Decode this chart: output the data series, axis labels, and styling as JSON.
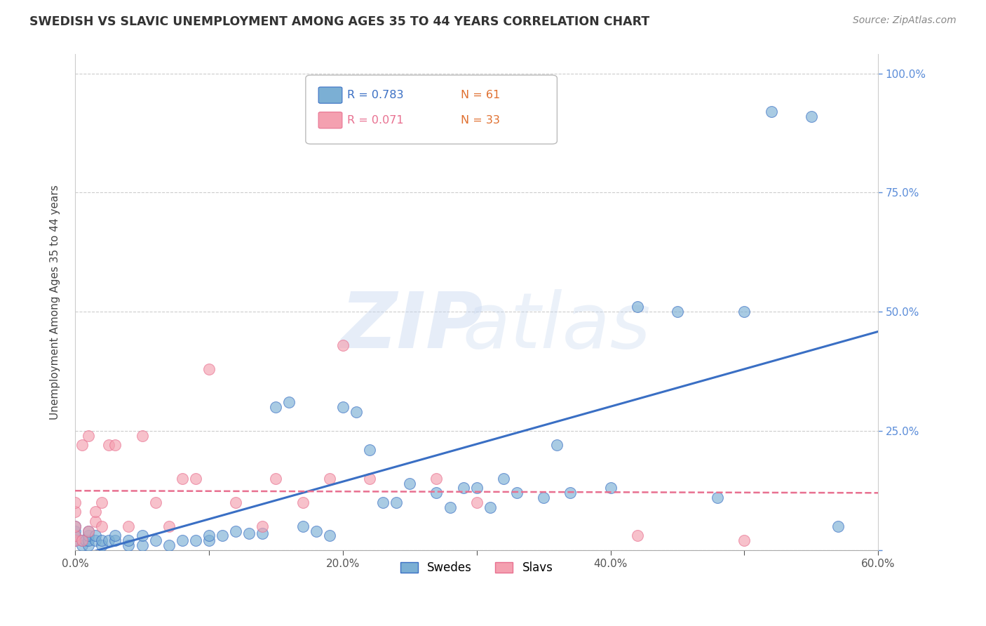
{
  "title": "SWEDISH VS SLAVIC UNEMPLOYMENT AMONG AGES 35 TO 44 YEARS CORRELATION CHART",
  "source": "Source: ZipAtlas.com",
  "ylabel": "Unemployment Among Ages 35 to 44 years",
  "xlim": [
    0.0,
    0.6
  ],
  "ylim": [
    0.0,
    1.04
  ],
  "grid_color": "#cccccc",
  "background_color": "#ffffff",
  "swede_color": "#7bafd4",
  "slav_color": "#f4a0b0",
  "swede_line_color": "#3a6fc4",
  "slav_line_color": "#e87090",
  "R_swede": 0.783,
  "N_swede": 61,
  "R_slav": 0.071,
  "N_slav": 33,
  "legend_label_swede": "Swedes",
  "legend_label_slav": "Slavs",
  "swede_x": [
    0.0,
    0.0,
    0.0,
    0.0,
    0.005,
    0.005,
    0.008,
    0.01,
    0.01,
    0.01,
    0.01,
    0.015,
    0.015,
    0.02,
    0.02,
    0.025,
    0.03,
    0.03,
    0.04,
    0.04,
    0.05,
    0.05,
    0.06,
    0.07,
    0.08,
    0.09,
    0.1,
    0.1,
    0.11,
    0.12,
    0.13,
    0.14,
    0.15,
    0.16,
    0.17,
    0.18,
    0.19,
    0.2,
    0.21,
    0.22,
    0.23,
    0.24,
    0.25,
    0.27,
    0.28,
    0.29,
    0.3,
    0.31,
    0.32,
    0.33,
    0.35,
    0.36,
    0.37,
    0.4,
    0.42,
    0.45,
    0.48,
    0.5,
    0.52,
    0.55,
    0.57
  ],
  "swede_y": [
    0.02,
    0.03,
    0.04,
    0.05,
    0.01,
    0.02,
    0.02,
    0.01,
    0.02,
    0.03,
    0.04,
    0.02,
    0.03,
    0.01,
    0.02,
    0.02,
    0.02,
    0.03,
    0.01,
    0.02,
    0.01,
    0.03,
    0.02,
    0.01,
    0.02,
    0.02,
    0.02,
    0.03,
    0.03,
    0.04,
    0.035,
    0.035,
    0.3,
    0.31,
    0.05,
    0.04,
    0.03,
    0.3,
    0.29,
    0.21,
    0.1,
    0.1,
    0.14,
    0.12,
    0.09,
    0.13,
    0.13,
    0.09,
    0.15,
    0.12,
    0.11,
    0.22,
    0.12,
    0.13,
    0.51,
    0.5,
    0.11,
    0.5,
    0.92,
    0.91,
    0.05
  ],
  "slav_x": [
    0.0,
    0.0,
    0.0,
    0.0,
    0.0,
    0.005,
    0.005,
    0.01,
    0.01,
    0.015,
    0.015,
    0.02,
    0.02,
    0.025,
    0.03,
    0.04,
    0.05,
    0.06,
    0.07,
    0.08,
    0.09,
    0.1,
    0.12,
    0.14,
    0.15,
    0.17,
    0.19,
    0.2,
    0.22,
    0.27,
    0.3,
    0.42,
    0.5
  ],
  "slav_y": [
    0.02,
    0.03,
    0.05,
    0.08,
    0.1,
    0.02,
    0.22,
    0.04,
    0.24,
    0.06,
    0.08,
    0.05,
    0.1,
    0.22,
    0.22,
    0.05,
    0.24,
    0.1,
    0.05,
    0.15,
    0.15,
    0.38,
    0.1,
    0.05,
    0.15,
    0.1,
    0.15,
    0.43,
    0.15,
    0.15,
    0.1,
    0.03,
    0.02
  ]
}
